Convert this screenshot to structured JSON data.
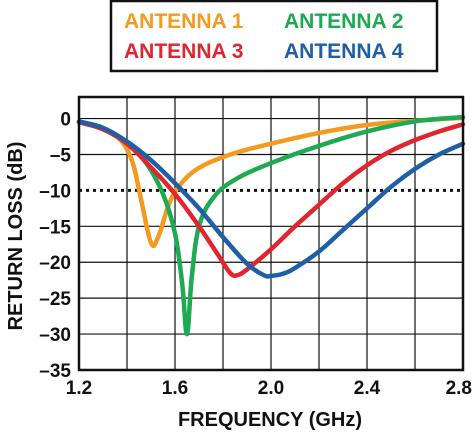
{
  "chart_data": {
    "type": "line",
    "title": "",
    "xlabel": "FREQUENCY (GHz)",
    "ylabel": "RETURN LOSS (dB)",
    "xlim": [
      1.2,
      2.8
    ],
    "ylim": [
      -35,
      3
    ],
    "x_ticks": [
      "1.2",
      "1.6",
      "2.0",
      "2.4",
      "2.8"
    ],
    "x_tick_values": [
      1.2,
      1.6,
      2.0,
      2.4,
      2.8
    ],
    "y_ticks": [
      "0",
      "–5",
      "–10",
      "–15",
      "–20",
      "–25",
      "–30",
      "–35"
    ],
    "y_tick_values": [
      0,
      -5,
      -10,
      -15,
      -20,
      -25,
      -30,
      -35
    ],
    "x_grid_step": 0.2,
    "grid": true,
    "reference_line": {
      "y": -10,
      "style": "dotted"
    },
    "legend_position": "top",
    "series": [
      {
        "name": "ANTENNA 1",
        "color": "#F39A1F",
        "x": [
          1.2,
          1.28,
          1.36,
          1.42,
          1.46,
          1.5,
          1.53,
          1.58,
          1.64,
          1.72,
          1.85,
          2.0,
          2.2,
          2.4,
          2.6,
          2.8
        ],
        "y": [
          -0.5,
          -1.2,
          -2.5,
          -5.8,
          -11.5,
          -17.3,
          -16.5,
          -11.5,
          -8.5,
          -6.5,
          -4.8,
          -3.5,
          -2.0,
          -0.9,
          -0.3,
          0.1
        ]
      },
      {
        "name": "ANTENNA 2",
        "color": "#1DAA52",
        "x": [
          1.2,
          1.3,
          1.4,
          1.48,
          1.55,
          1.6,
          1.63,
          1.65,
          1.67,
          1.7,
          1.76,
          1.85,
          2.0,
          2.2,
          2.4,
          2.6,
          2.8
        ],
        "y": [
          -0.5,
          -1.3,
          -3.5,
          -6.2,
          -10.5,
          -16.0,
          -23.0,
          -30.0,
          -22.0,
          -15.0,
          -11.0,
          -8.5,
          -6.2,
          -3.8,
          -1.8,
          -0.4,
          0.2
        ]
      },
      {
        "name": "ANTENNA 3",
        "color": "#E1252F",
        "x": [
          1.2,
          1.3,
          1.4,
          1.5,
          1.6,
          1.7,
          1.78,
          1.83,
          1.86,
          1.9,
          2.0,
          2.1,
          2.2,
          2.3,
          2.4,
          2.5,
          2.6,
          2.7,
          2.8
        ],
        "y": [
          -0.5,
          -1.5,
          -3.5,
          -6.8,
          -10.5,
          -15.0,
          -19.0,
          -21.5,
          -21.8,
          -21.0,
          -18.2,
          -15.0,
          -12.0,
          -9.0,
          -6.5,
          -4.5,
          -3.0,
          -1.8,
          -0.8
        ]
      },
      {
        "name": "ANTENNA 4",
        "color": "#1F5FA6",
        "x": [
          1.2,
          1.3,
          1.4,
          1.5,
          1.6,
          1.7,
          1.8,
          1.9,
          1.97,
          2.0,
          2.05,
          2.1,
          2.2,
          2.3,
          2.4,
          2.5,
          2.6,
          2.7,
          2.8
        ],
        "y": [
          -0.4,
          -1.3,
          -3.2,
          -5.8,
          -9.0,
          -12.5,
          -16.5,
          -20.2,
          -21.8,
          -21.9,
          -21.6,
          -20.8,
          -18.5,
          -15.5,
          -12.5,
          -9.5,
          -7.0,
          -5.0,
          -3.5
        ]
      }
    ]
  }
}
